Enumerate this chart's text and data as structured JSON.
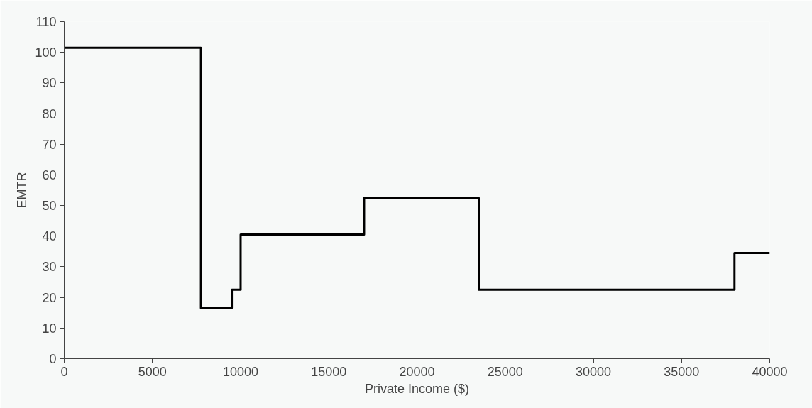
{
  "chart_data": {
    "type": "step",
    "xlabel": "Private Income ($)",
    "ylabel": "EMTR",
    "x": [
      0,
      7750,
      9500,
      10000,
      17000,
      23500,
      38000,
      40000
    ],
    "values": [
      101.5,
      16.5,
      22.5,
      40.5,
      52.5,
      22.5,
      34.5,
      34.5
    ],
    "color": "#000000",
    "xlim": [
      0,
      40000
    ],
    "xticks": [
      0,
      5000,
      10000,
      15000,
      20000,
      25000,
      30000,
      35000,
      40000
    ],
    "ylim": [
      0,
      110
    ],
    "yticks": [
      0,
      10,
      20,
      30,
      40,
      50,
      60,
      70,
      80,
      90,
      100,
      110
    ],
    "grid": false
  }
}
